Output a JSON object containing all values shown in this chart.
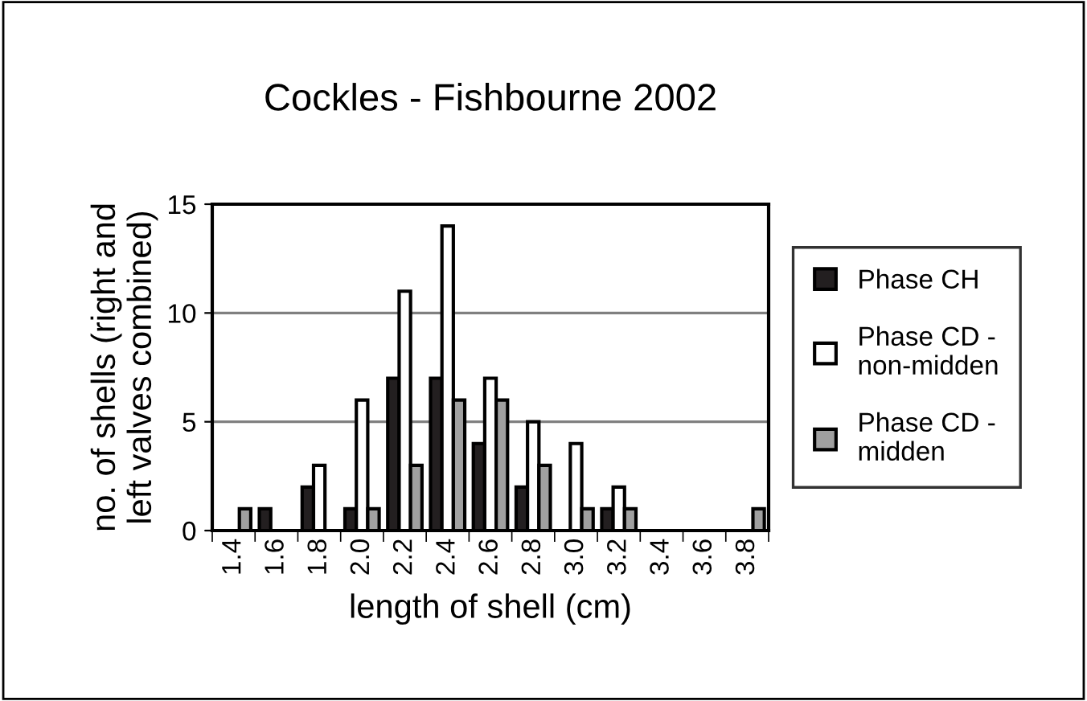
{
  "chart_data": {
    "type": "bar",
    "title": "Cockles - Fishbourne 2002",
    "xlabel": "length of shell (cm)",
    "ylabel": "no. of shells (right and\nleft valves combined)",
    "categories": [
      "1.4",
      "1.6",
      "1.8",
      "2.0",
      "2.2",
      "2.4",
      "2.6",
      "2.8",
      "3.0",
      "3.2",
      "3.4",
      "3.6",
      "3.8"
    ],
    "series": [
      {
        "name": "Phase CH",
        "color": "#231f20",
        "values": [
          0,
          1,
          2,
          1,
          7,
          7,
          4,
          2,
          0,
          1,
          0,
          0,
          0
        ]
      },
      {
        "name": "Phase CD -\nnon-midden",
        "color": "#ffffff",
        "values": [
          0,
          0,
          3,
          6,
          11,
          14,
          7,
          5,
          4,
          2,
          0,
          0,
          0
        ]
      },
      {
        "name": "Phase CD -\nmidden",
        "color": "#a0a0a0",
        "values": [
          1,
          0,
          0,
          1,
          3,
          6,
          6,
          3,
          1,
          1,
          0,
          0,
          1
        ]
      }
    ],
    "ylim": [
      0,
      15
    ],
    "yticks": [
      0,
      5,
      10,
      15
    ],
    "grid": "y",
    "legend": "right"
  }
}
